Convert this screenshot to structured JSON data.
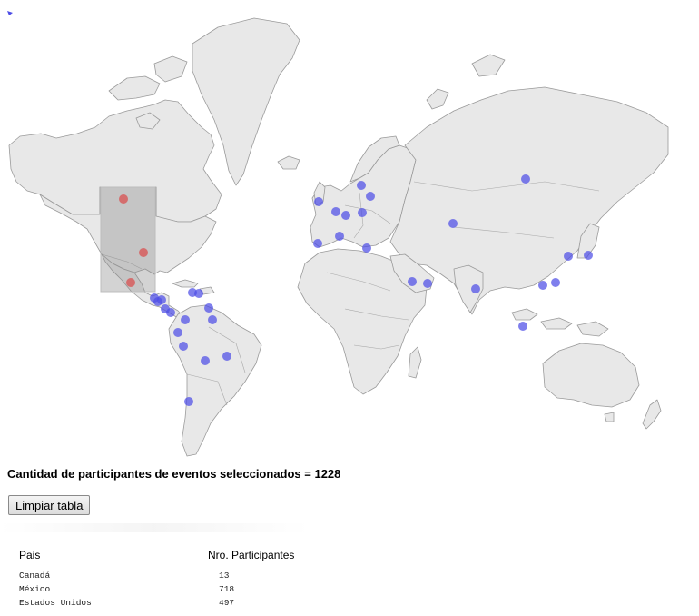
{
  "map": {
    "selection_brush": {
      "label": "selection-rectangle"
    },
    "selected_points": [
      "Canadá",
      "Estados Unidos",
      "México"
    ],
    "colors": {
      "land": "#e8e8e8",
      "border": "#9a9a9a",
      "dot_unselected": "#4d4de6",
      "dot_selected": "#d94b4b"
    }
  },
  "summary": {
    "text": "Cantidad de participantes de eventos seleccionados = 1228"
  },
  "actions": {
    "clear_label": "Limpiar tabla"
  },
  "table": {
    "headers": [
      "Pais",
      "Nro. Participantes"
    ],
    "rows": [
      {
        "country": "Canadá",
        "participants": "13"
      },
      {
        "country": "México",
        "participants": "718"
      },
      {
        "country": "Estados Unidos",
        "participants": "497"
      }
    ]
  }
}
